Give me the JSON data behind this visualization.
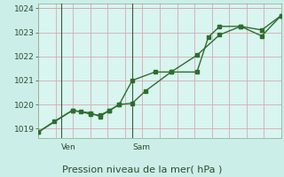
{
  "xlabel": "Pression niveau de la mer( hPa )",
  "background_color": "#cceee8",
  "plot_bg_color": "#d8f5f0",
  "grid_color": "#d8a8b0",
  "line_color": "#2d6e2d",
  "ylim": [
    1018.6,
    1024.2
  ],
  "xlim": [
    0,
    15
  ],
  "yticks": [
    1019,
    1020,
    1021,
    1022,
    1023,
    1024
  ],
  "ven_x": 1.4,
  "sam_x": 5.8,
  "line1_x": [
    0,
    1.0,
    2.1,
    2.6,
    3.2,
    3.8,
    4.4,
    5.0,
    5.8,
    6.6,
    8.2,
    9.8,
    10.5,
    11.2,
    12.5,
    13.8,
    15
  ],
  "line1_y": [
    1018.85,
    1019.3,
    1019.75,
    1019.7,
    1019.6,
    1019.55,
    1019.75,
    1020.0,
    1020.05,
    1020.55,
    1021.35,
    1021.35,
    1022.8,
    1023.25,
    1023.25,
    1022.85,
    1023.7
  ],
  "line2_x": [
    0,
    2.1,
    3.2,
    3.8,
    4.4,
    5.0,
    5.8,
    7.2,
    8.2,
    9.8,
    11.2,
    12.5,
    13.8,
    15
  ],
  "line2_y": [
    1018.85,
    1019.75,
    1019.65,
    1019.5,
    1019.75,
    1020.0,
    1021.0,
    1021.35,
    1021.35,
    1022.05,
    1022.9,
    1023.25,
    1023.1,
    1023.7
  ],
  "ven_label": "Ven",
  "sam_label": "Sam",
  "ytick_fontsize": 6.5,
  "xlabel_fontsize": 8.0,
  "day_label_fontsize": 6.5
}
